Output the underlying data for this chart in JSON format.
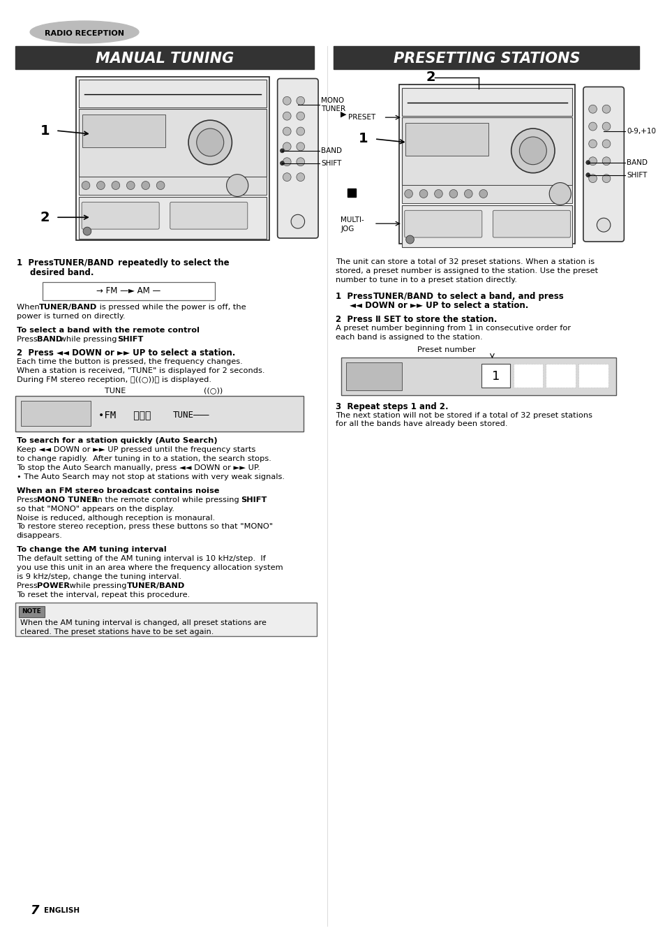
{
  "page_bg": "#ffffff",
  "header_text": "RADIO RECEPTION",
  "left_title": "MANUAL TUNING",
  "right_title": "PRESETTING STATIONS",
  "page_number": "7",
  "page_number_label": "ENGLISH"
}
